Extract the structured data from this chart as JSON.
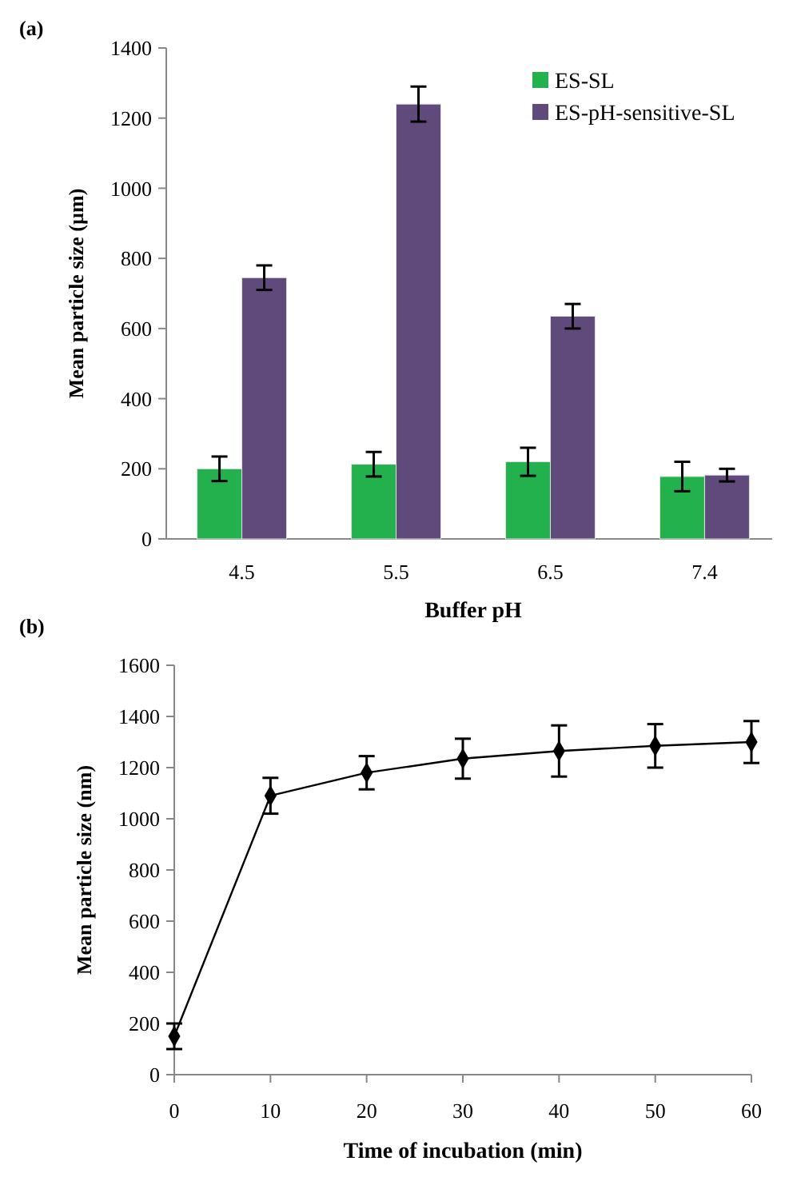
{
  "chart_data": [
    {
      "type": "bar",
      "title": "(a)",
      "xlabel": "Buffer pH",
      "ylabel": "Mean particle size (µm)",
      "categories": [
        "4.5",
        "5.5",
        "6.5",
        "7.4"
      ],
      "series": [
        {
          "name": "ES-SL",
          "color": "#22b14c",
          "values": [
            200,
            213,
            220,
            178
          ],
          "errors": [
            35,
            35,
            40,
            42
          ]
        },
        {
          "name": "ES-pH-sensitive-SL",
          "color": "#604a7b",
          "values": [
            745,
            1240,
            635,
            182
          ],
          "errors": [
            35,
            50,
            35,
            18
          ]
        }
      ],
      "ylim": [
        0,
        1400
      ],
      "yticks": [
        0,
        200,
        400,
        600,
        800,
        1000,
        1200,
        1400
      ],
      "legend": "top right"
    },
    {
      "type": "line",
      "title": "(b)",
      "xlabel": "Time of incubation (min)",
      "ylabel": "Mean particle size (nm)",
      "x": [
        0,
        10,
        20,
        30,
        40,
        50,
        60
      ],
      "series": [
        {
          "color": "#000000",
          "values": [
            150,
            1090,
            1180,
            1235,
            1265,
            1285,
            1300
          ],
          "errors": [
            50,
            70,
            65,
            78,
            100,
            85,
            82
          ]
        }
      ],
      "xlim": [
        0,
        60
      ],
      "xticks": [
        0,
        10,
        20,
        30,
        40,
        50,
        60
      ],
      "ylim": [
        0,
        1600
      ],
      "yticks": [
        0,
        200,
        400,
        600,
        800,
        1000,
        1200,
        1400,
        1600
      ],
      "marker": "diamond",
      "line_style": "solid"
    }
  ]
}
